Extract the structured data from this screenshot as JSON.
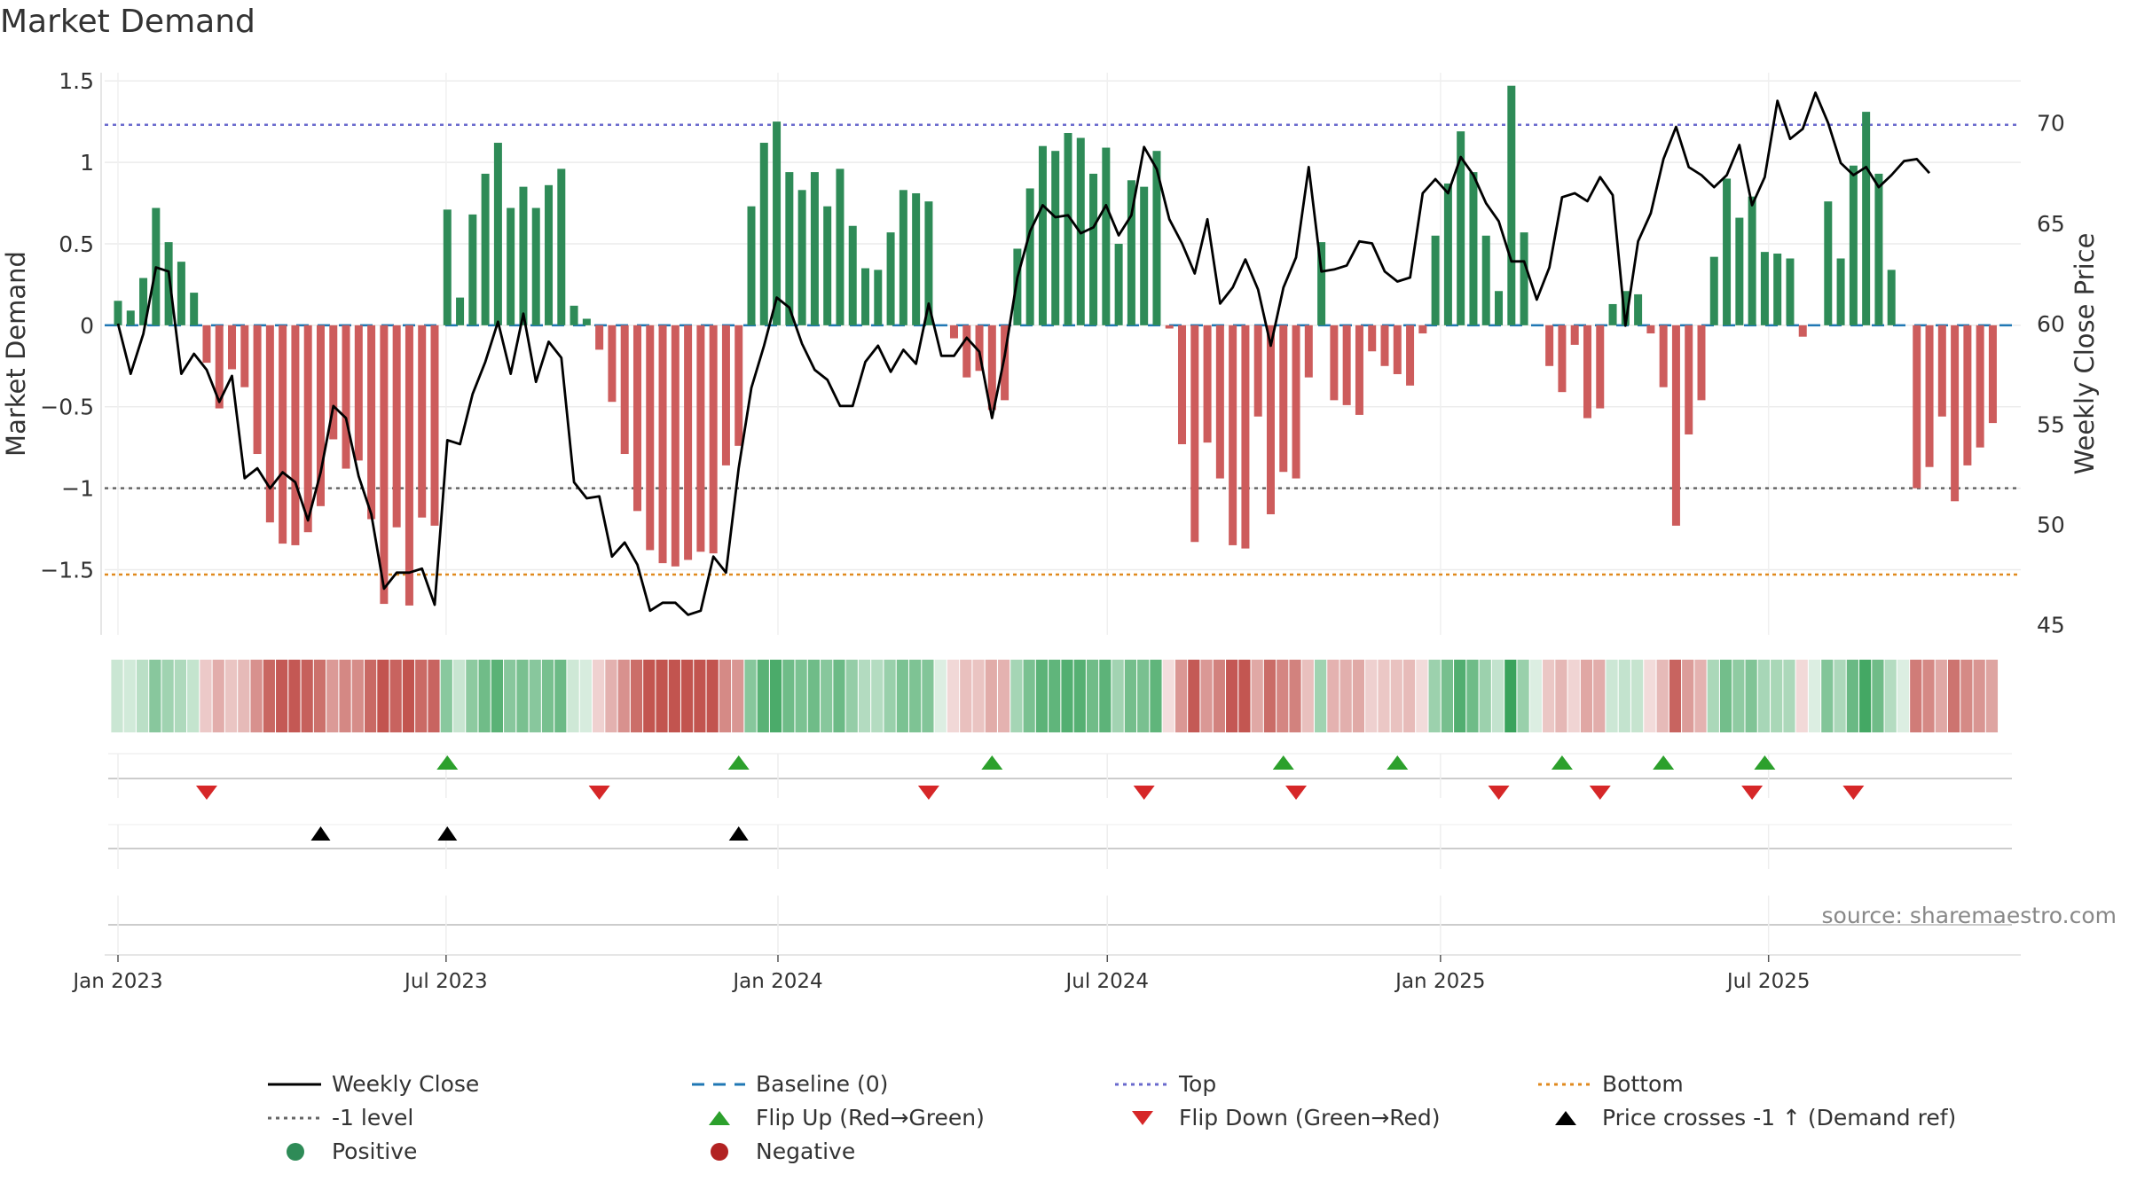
{
  "title": "Market Demand",
  "source": "source: sharemaestro.com",
  "colors": {
    "positive": "#2e8b57",
    "negative": "#cd5c5c",
    "close": "#000000",
    "baseline": "#1f77b4",
    "top": "#6a6acd",
    "level": "#666666",
    "bottom": "#e08a1e",
    "flip_up": "#2ca02c",
    "flip_down": "#d62728"
  },
  "legend": [
    {
      "label": "Weekly Close",
      "icon": "solid-line",
      "color": "#000000"
    },
    {
      "label": "Baseline (0)",
      "icon": "dashed-line",
      "color": "#1f77b4"
    },
    {
      "label": "Top",
      "icon": "dotted-line",
      "color": "#6a6acd"
    },
    {
      "label": "Bottom",
      "icon": "dotted-line",
      "color": "#e08a1e"
    },
    {
      "label": "-1 level",
      "icon": "dotted-line",
      "color": "#666666"
    },
    {
      "label": "Flip Up (Red→Green)",
      "icon": "triangle-up",
      "color": "#2ca02c"
    },
    {
      "label": "Flip Down (Green→Red)",
      "icon": "triangle-down",
      "color": "#d62728"
    },
    {
      "label": "Price crosses -1 ↑ (Demand ref)",
      "icon": "triangle-up",
      "color": "#000000"
    },
    {
      "label": "Positive",
      "icon": "circle",
      "color": "#2e8b57"
    },
    {
      "label": "Negative",
      "icon": "circle",
      "color": "#b22222"
    }
  ],
  "chart_data": {
    "type": "bar",
    "title": "Market Demand",
    "ylabel": "Market Demand",
    "y2label": "Weekly Close Price",
    "ylim": [
      -1.9,
      1.55
    ],
    "y2lim": [
      44.5,
      72.5
    ],
    "yticks": [
      1.5,
      1,
      0.5,
      0,
      -0.5,
      -1,
      -1.5
    ],
    "ytick_labels": [
      "1.5",
      "1",
      "0.5",
      "0",
      "−0.5",
      "−1",
      "−1.5"
    ],
    "y2ticks": [
      70,
      65,
      60,
      55,
      50,
      45
    ],
    "x_start": "2023-01-02",
    "xticks": [
      {
        "label": "Jan 2023",
        "week": 0
      },
      {
        "label": "Jul 2023",
        "week": 25.9
      },
      {
        "label": "Jan 2024",
        "week": 52.1
      },
      {
        "label": "Jul 2024",
        "week": 78.1
      },
      {
        "label": "Jan 2025",
        "week": 104.4
      },
      {
        "label": "Jul 2025",
        "week": 130.3
      }
    ],
    "reference_lines": {
      "baseline": 0,
      "top": 1.23,
      "minus_one": -1,
      "bottom": -1.53
    },
    "demand": [
      0.15,
      0.09,
      0.29,
      0.72,
      0.51,
      0.39,
      0.2,
      -0.23,
      -0.51,
      -0.27,
      -0.38,
      -0.79,
      -1.21,
      -1.34,
      -1.35,
      -1.27,
      -1.11,
      -0.7,
      -0.88,
      -0.83,
      -1.19,
      -1.71,
      -1.24,
      -1.72,
      -1.18,
      -1.23,
      0.71,
      0.17,
      0.68,
      0.93,
      1.12,
      0.72,
      0.85,
      0.72,
      0.86,
      0.96,
      0.12,
      0.04,
      -0.15,
      -0.47,
      -0.79,
      -1.14,
      -1.38,
      -1.46,
      -1.48,
      -1.44,
      -1.39,
      -1.4,
      -0.86,
      -0.74,
      0.73,
      1.12,
      1.25,
      0.94,
      0.83,
      0.94,
      0.73,
      0.96,
      0.61,
      0.35,
      0.34,
      0.57,
      0.83,
      0.81,
      0.76,
      0.0,
      -0.08,
      -0.32,
      -0.28,
      -0.52,
      -0.46,
      0.47,
      0.84,
      1.1,
      1.07,
      1.18,
      1.15,
      0.93,
      1.09,
      0.5,
      0.89,
      0.85,
      1.07,
      -0.02,
      -0.73,
      -1.33,
      -0.72,
      -0.94,
      -1.35,
      -1.37,
      -0.56,
      -1.16,
      -0.9,
      -0.94,
      -0.32,
      0.51,
      -0.46,
      -0.49,
      -0.55,
      -0.16,
      -0.25,
      -0.3,
      -0.37,
      -0.05,
      0.55,
      0.87,
      1.19,
      0.94,
      0.55,
      0.21,
      1.47,
      0.57,
      0.0,
      -0.25,
      -0.41,
      -0.12,
      -0.57,
      -0.51,
      0.13,
      0.21,
      0.19,
      -0.05,
      -0.38,
      -1.23,
      -0.67,
      -0.46,
      0.42,
      0.9,
      0.66,
      0.79,
      0.45,
      0.44,
      0.41,
      -0.07,
      0.0,
      0.76,
      0.41,
      0.98,
      1.31,
      0.93,
      0.34,
      0.0,
      -1.0,
      -0.87,
      -0.56,
      -1.08,
      -0.86,
      -0.75,
      -0.6
    ],
    "weekly_close": [
      60,
      57.5,
      59.5,
      62.8,
      62.6,
      57.5,
      58.5,
      57.7,
      56.1,
      57.4,
      52.3,
      52.8,
      51.8,
      52.6,
      52.1,
      50.2,
      52.6,
      55.9,
      55.3,
      52.4,
      50.5,
      46.8,
      47.6,
      47.6,
      47.8,
      46,
      54.2,
      54,
      56.5,
      58.1,
      60.1,
      57.5,
      60.5,
      57.1,
      59.1,
      58.3,
      52.1,
      51.3,
      51.4,
      48.4,
      49.1,
      48,
      45.7,
      46.1,
      46.1,
      45.5,
      45.7,
      48.4,
      47.6,
      52.8,
      56.8,
      58.9,
      61.3,
      60.8,
      59,
      57.7,
      57.2,
      55.9,
      55.9,
      58.1,
      58.9,
      57.6,
      58.7,
      58,
      61,
      58.4,
      58.4,
      59.3,
      58.6,
      55.3,
      58.4,
      62.3,
      64.6,
      65.9,
      65.3,
      65.4,
      64.5,
      64.8,
      65.9,
      64.4,
      65.4,
      68.8,
      67.7,
      65.2,
      64,
      62.5,
      65.2,
      61,
      61.8,
      63.2,
      61.7,
      58.9,
      61.8,
      63.3,
      67.8,
      62.6,
      62.7,
      62.9,
      64.1,
      64,
      62.6,
      62.1,
      62.3,
      66.5,
      67.2,
      66.5,
      68.3,
      67.4,
      66,
      65.1,
      63.1,
      63.1,
      61.2,
      62.8,
      66.3,
      66.5,
      66.1,
      67.3,
      66.4,
      59.9,
      64.1,
      65.5,
      68.2,
      69.8,
      67.8,
      67.4,
      66.8,
      67.4,
      68.9,
      65.9,
      67.3,
      71.1,
      69.2,
      69.7,
      71.5,
      70,
      68,
      67.4,
      67.8,
      66.8,
      67.4,
      68.1,
      68.2,
      67.5
    ],
    "flip_up_weeks": [
      26,
      49,
      69,
      92,
      101,
      114,
      122,
      130
    ],
    "flip_down_weeks": [
      7,
      38,
      64,
      81,
      93,
      109,
      117,
      129,
      137
    ],
    "price_cross_weeks": [
      16,
      26,
      49
    ]
  }
}
